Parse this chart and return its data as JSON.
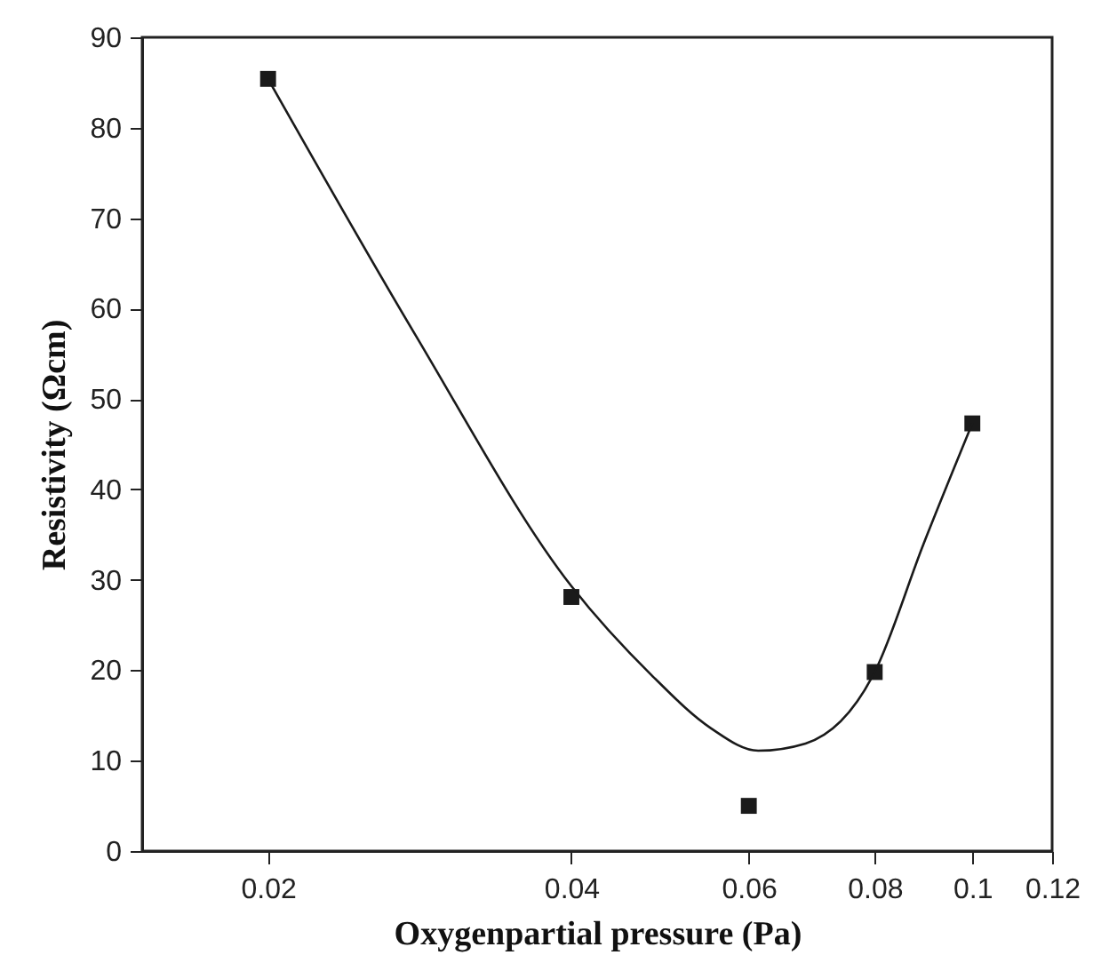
{
  "chart_data": {
    "type": "scatter",
    "xlabel": "Oxygenpartial pressure (Pa)",
    "ylabel": "Resistivity (Ωcm)",
    "log": "x",
    "marker": "square",
    "grid": false,
    "xlim": [
      0.015,
      0.12
    ],
    "xticks": [
      0.02,
      0.04,
      0.06,
      0.08,
      0.1,
      0.12
    ],
    "ylim": [
      0,
      90
    ],
    "yticks": [
      0,
      10,
      20,
      30,
      40,
      50,
      60,
      70,
      80,
      90
    ],
    "series": [
      {
        "color": "#1a1a1a",
        "x": [
          0.02,
          0.04,
          0.06,
          0.08,
          0.1
        ],
        "values": [
          85.4,
          28.1,
          5.0,
          19.8,
          47.3
        ]
      },
      {
        "type": "line",
        "color": "#1a1a1a",
        "line_style": "solid",
        "marker": "none",
        "x": [
          0.02,
          0.028,
          0.04,
          0.0481,
          0.055,
          0.0613,
          0.0683,
          0.08,
          0.0894,
          0.1
        ],
        "values": [
          85.4,
          57.1,
          29.3,
          19.4,
          13.6,
          11.1,
          11.9,
          19.8,
          33.9,
          47.3
        ]
      }
    ]
  }
}
